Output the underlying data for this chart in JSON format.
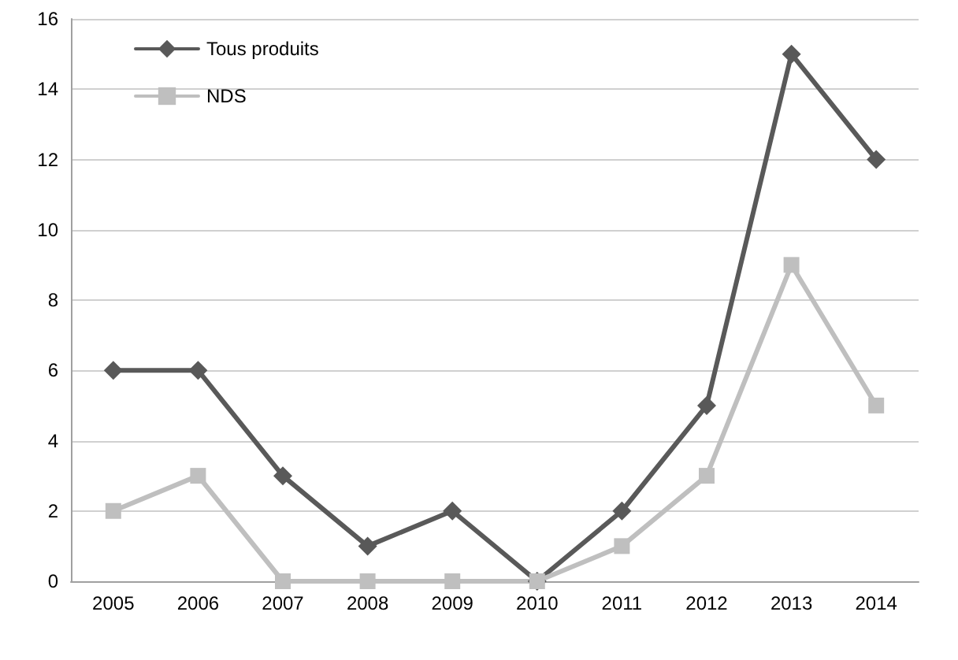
{
  "chart_data": {
    "type": "line",
    "categories": [
      "2005",
      "2006",
      "2007",
      "2008",
      "2009",
      "2010",
      "2011",
      "2012",
      "2013",
      "2014"
    ],
    "series": [
      {
        "name": "Tous produits",
        "color": "#595959",
        "marker": "diamond",
        "values": [
          6,
          6,
          3,
          1,
          2,
          0,
          2,
          5,
          15,
          12
        ]
      },
      {
        "name": "NDS",
        "color": "#bfbfbf",
        "marker": "square",
        "values": [
          2,
          3,
          0,
          0,
          0,
          0,
          1,
          3,
          9,
          5
        ]
      }
    ],
    "ylim": [
      0,
      16
    ],
    "yticks": [
      0,
      2,
      4,
      6,
      8,
      10,
      12,
      14,
      16
    ],
    "grid": "y",
    "legend": "top left",
    "line_style": "solid"
  }
}
